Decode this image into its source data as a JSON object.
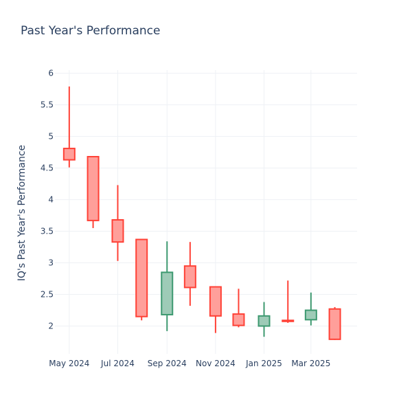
{
  "chart_data": {
    "type": "candlestick",
    "title": "Past Year's Performance",
    "xlabel": "",
    "ylabel": "IQ's Past Year's Performance",
    "ylim": [
      1.56,
      6.05
    ],
    "xlim": [
      "2024-04-13",
      "2025-04-28"
    ],
    "y_ticks": [
      2,
      2.5,
      3,
      3.5,
      4,
      4.5,
      5,
      5.5,
      6
    ],
    "y_tick_labels": [
      "2",
      "2.5",
      "3",
      "3.5",
      "4",
      "4.5",
      "5",
      "5.5",
      "6"
    ],
    "x_ticks": [
      "2024-05-01",
      "2024-07-01",
      "2024-09-01",
      "2024-11-01",
      "2025-01-01",
      "2025-03-01"
    ],
    "x_tick_labels": [
      "May 2024",
      "Jul 2024",
      "Sep 2024",
      "Nov 2024",
      "Jan 2025",
      "Mar 2025"
    ],
    "grid": true,
    "legend": "none",
    "colors": {
      "increasing_line": "#3d9970",
      "increasing_fill": "#9ecbb7",
      "decreasing_line": "#ff4136",
      "decreasing_fill": "#ff9f9a",
      "grid": "#eef1f5",
      "text": "#2a3f5f"
    },
    "candles": [
      {
        "date": "2024-05-01",
        "open": 4.81,
        "high": 5.79,
        "low": 4.51,
        "close": 4.63
      },
      {
        "date": "2024-05-31",
        "open": 4.68,
        "high": 4.69,
        "low": 3.55,
        "close": 3.67
      },
      {
        "date": "2024-07-01",
        "open": 3.68,
        "high": 4.23,
        "low": 3.03,
        "close": 3.33
      },
      {
        "date": "2024-07-31",
        "open": 3.37,
        "high": 3.37,
        "low": 2.09,
        "close": 2.15
      },
      {
        "date": "2024-09-01",
        "open": 2.18,
        "high": 3.34,
        "low": 1.92,
        "close": 2.85
      },
      {
        "date": "2024-09-30",
        "open": 2.95,
        "high": 3.33,
        "low": 2.32,
        "close": 2.61
      },
      {
        "date": "2024-11-01",
        "open": 2.62,
        "high": 2.62,
        "low": 1.89,
        "close": 2.16
      },
      {
        "date": "2024-11-30",
        "open": 2.19,
        "high": 2.59,
        "low": 1.98,
        "close": 2.01
      },
      {
        "date": "2025-01-01",
        "open": 2.0,
        "high": 2.38,
        "low": 1.83,
        "close": 2.16
      },
      {
        "date": "2025-01-31",
        "open": 2.09,
        "high": 2.72,
        "low": 2.05,
        "close": 2.08
      },
      {
        "date": "2025-03-01",
        "open": 2.1,
        "high": 2.53,
        "low": 2.01,
        "close": 2.25
      },
      {
        "date": "2025-03-31",
        "open": 2.27,
        "high": 2.3,
        "low": 1.78,
        "close": 1.79
      }
    ]
  }
}
